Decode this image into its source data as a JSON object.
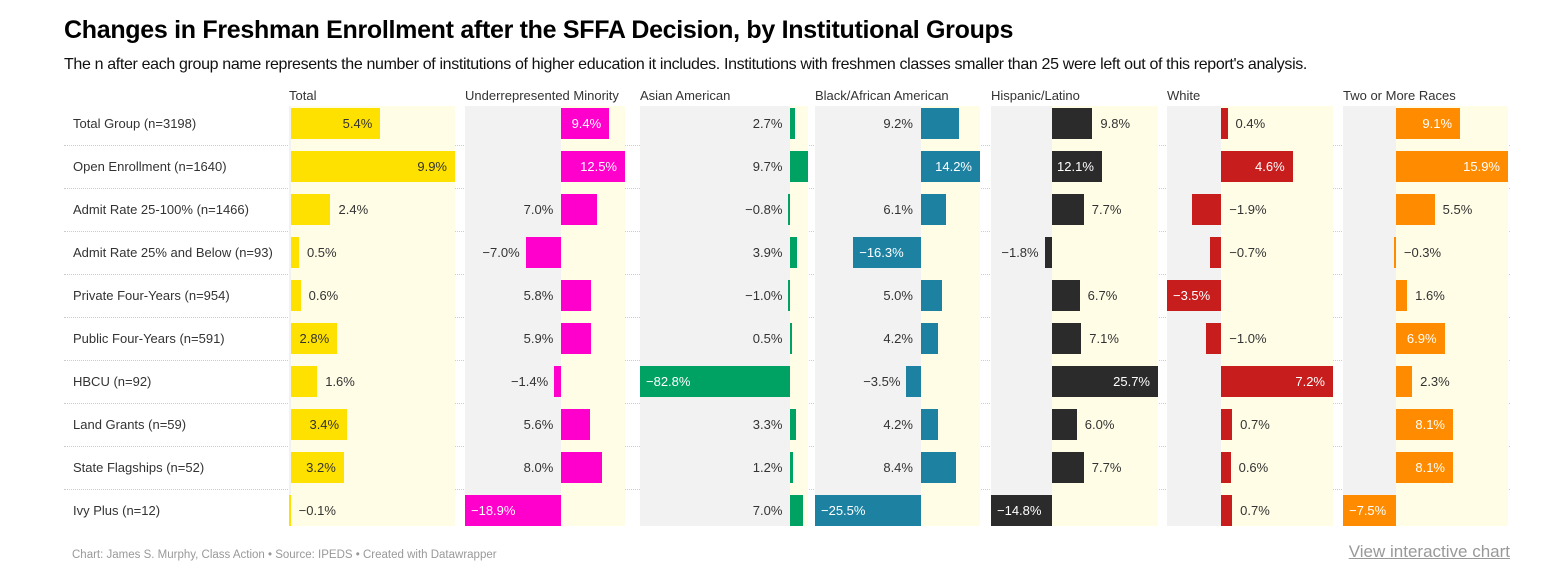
{
  "title": "Changes in Freshman Enrollment after the SFFA Decision, by Institutional Groups",
  "subtitle": "The n after each group name represents the number of institutions of higher education it includes. Institutions with freshmen classes smaller than 25 were left out of this report's analysis.",
  "footer": "Chart: James S. Murphy, Class Action • Source: IPEDS • Created with Datawrapper",
  "link_label": "View interactive chart",
  "chart_data": {
    "type": "bar",
    "orientation": "horizontal",
    "layout": "split-bars",
    "unit": "%",
    "categories": [
      "Total Group (n=3198)",
      "Open Enrollment (n=1640)",
      "Admit Rate 25-100% (n=1466)",
      "Admit Rate 25% and Below (n=93)",
      "Private Four-Years (n=954)",
      "Public Four-Years (n=591)",
      "HBCU (n=92)",
      "Land Grants (n=59)",
      "State Flagships (n=52)",
      "Ivy Plus (n=12)"
    ],
    "series": [
      {
        "name": "Total",
        "color": "#ffe100",
        "values": [
          5.4,
          9.9,
          2.4,
          0.5,
          0.6,
          2.8,
          1.6,
          3.4,
          3.2,
          -0.1
        ],
        "labels": [
          "5.4%",
          "9.9%",
          "2.4%",
          "0.5%",
          "0.6%",
          "2.8%",
          "1.6%",
          "3.4%",
          "3.2%",
          "−0.1%"
        ]
      },
      {
        "name": "Underrepresented Minority",
        "color": "#ff00cc",
        "values": [
          9.4,
          12.5,
          7.0,
          -7.0,
          5.8,
          5.9,
          -1.4,
          5.6,
          8.0,
          -18.9
        ],
        "labels": [
          "9.4%",
          "12.5%",
          "7.0%",
          "−7.0%",
          "5.8%",
          "5.9%",
          "−1.4%",
          "5.6%",
          "8.0%",
          "−18.9%"
        ]
      },
      {
        "name": "Asian American",
        "color": "#00a264",
        "values": [
          2.7,
          9.7,
          -0.8,
          3.9,
          -1.0,
          0.5,
          -82.8,
          3.3,
          1.2,
          7.0
        ],
        "labels": [
          "2.7%",
          "9.7%",
          "−0.8%",
          "3.9%",
          "−1.0%",
          "0.5%",
          "−82.8%",
          "3.3%",
          "1.2%",
          "7.0%"
        ]
      },
      {
        "name": "Black/African American",
        "color": "#1d81a2",
        "values": [
          9.2,
          14.2,
          6.1,
          -16.3,
          5.0,
          4.2,
          -3.5,
          4.2,
          8.4,
          -25.5
        ],
        "labels": [
          "9.2%",
          "14.2%",
          "6.1%",
          "−16.3%",
          "5.0%",
          "4.2%",
          "−3.5%",
          "4.2%",
          "8.4%",
          "−25.5%"
        ]
      },
      {
        "name": "Hispanic/Latino",
        "color": "#2b2b2b",
        "values": [
          9.8,
          12.1,
          7.7,
          -1.8,
          6.7,
          7.1,
          25.7,
          6.0,
          7.7,
          -14.8
        ],
        "labels": [
          "9.8%",
          "12.1%",
          "7.7%",
          "−1.8%",
          "6.7%",
          "7.1%",
          "25.7%",
          "6.0%",
          "7.7%",
          "−14.8%"
        ]
      },
      {
        "name": "White",
        "color": "#c71e1d",
        "values": [
          0.4,
          4.6,
          -1.9,
          -0.7,
          -3.5,
          -1.0,
          7.2,
          0.7,
          0.6,
          0.7
        ],
        "labels": [
          "0.4%",
          "4.6%",
          "−1.9%",
          "−0.7%",
          "−3.5%",
          "−1.0%",
          "7.2%",
          "0.7%",
          "0.6%",
          "0.7%"
        ]
      },
      {
        "name": "Two or More Races",
        "color": "#ff8c00",
        "values": [
          9.1,
          15.9,
          5.5,
          -0.3,
          1.6,
          6.9,
          2.3,
          8.1,
          8.1,
          -7.5
        ],
        "labels": [
          "9.1%",
          "15.9%",
          "5.5%",
          "−0.3%",
          "1.6%",
          "6.9%",
          "2.3%",
          "8.1%",
          "8.1%",
          "−7.5%"
        ]
      }
    ],
    "inside_label_colors": {
      "Total": "#333333",
      "default": "#ffffff"
    },
    "background_negative": "#f2f2f2",
    "background_positive": "#fffde6"
  }
}
